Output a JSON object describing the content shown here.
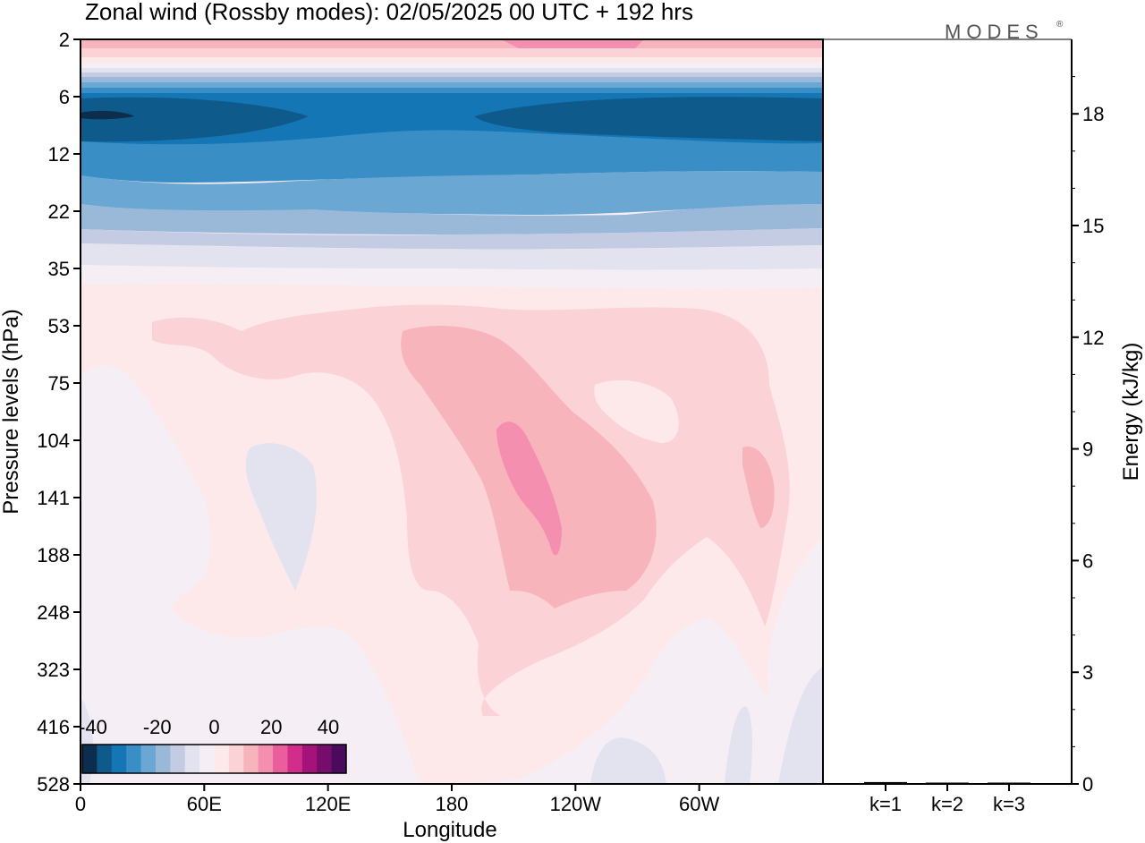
{
  "header": {
    "title": "Zonal wind (Rossby modes):  02/05/2025  00 UTC  + 192 hrs",
    "brand": "MODES",
    "brand_mark": "®"
  },
  "chart_data": [
    {
      "type": "heatmap",
      "title": "Zonal wind (Rossby modes):  02/05/2025  00 UTC  + 192 hrs",
      "xlabel": "Longitude",
      "ylabel": "Pressure levels (hPa)",
      "x_ticks": [
        "0",
        "60E",
        "120E",
        "180",
        "120W",
        "60W"
      ],
      "y_ticks": [
        "2",
        "6",
        "12",
        "22",
        "35",
        "53",
        "75",
        "104",
        "141",
        "188",
        "248",
        "323",
        "416",
        "528"
      ],
      "colorbar": {
        "tick_labels": [
          "-40",
          "-20",
          "0",
          "20",
          "40"
        ],
        "colors": [
          "#0d2d4f",
          "#0e5a8a",
          "#1576b5",
          "#3a8ec6",
          "#6aa7d2",
          "#9ab9d9",
          "#c4cce3",
          "#e3e3f0",
          "#f5eef5",
          "#fde9ea",
          "#fbd3d6",
          "#f8b4bb",
          "#f48fb0",
          "#ea5e9c",
          "#d02e8a",
          "#a4127a",
          "#760c6c",
          "#4a0a5e"
        ]
      },
      "value_range": [
        -40,
        40
      ],
      "description_bands": [
        {
          "level": "2-6",
          "value": 10
        },
        {
          "level": "6-35",
          "value": -25
        },
        {
          "level": "53-248",
          "value": 10
        },
        {
          "level": "248-528",
          "value": 0
        }
      ]
    },
    {
      "type": "bar",
      "ylabel": "Energy (kJ/kg)",
      "categories": [
        "k=1",
        "k=2",
        "k=3"
      ],
      "values": [
        0.05,
        0.03,
        0.02
      ],
      "ylim": [
        0,
        20
      ],
      "y_ticks": [
        "0",
        "3",
        "6",
        "9",
        "12",
        "15",
        "18"
      ]
    }
  ]
}
